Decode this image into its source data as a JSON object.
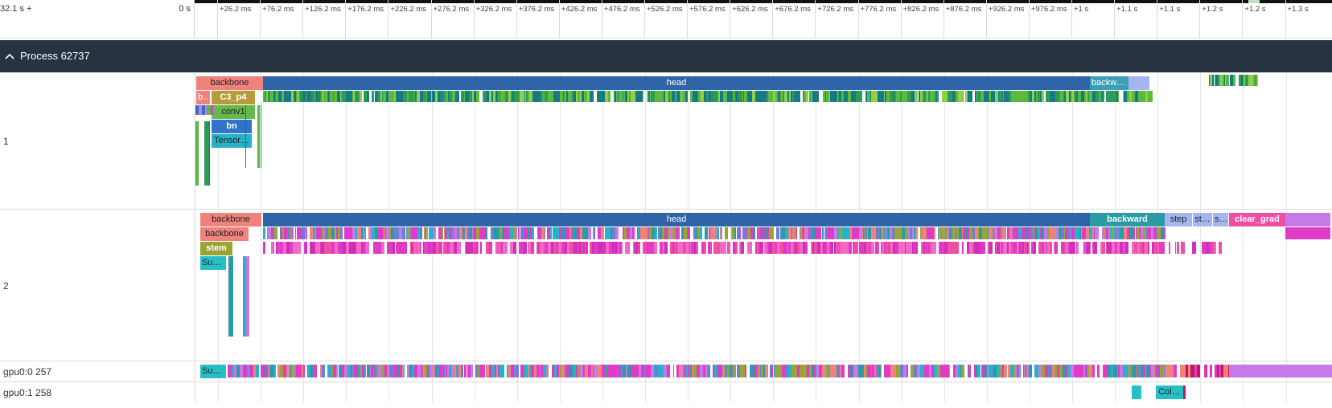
{
  "ruler": {
    "start_label": "32.1 s +",
    "zero_label": "0 s",
    "ticks": [
      "+26.2 ms",
      "+76.2 ms",
      "+126.2 ms",
      "+176.2 ms",
      "+226.2 ms",
      "+276.2 ms",
      "+326.2 ms",
      "+376.2 ms",
      "+426.2 ms",
      "+476.2 ms",
      "+526.2 ms",
      "+576.2 ms",
      "+626.2 ms",
      "+676.2 ms",
      "+726.2 ms",
      "+776.2 ms",
      "+826.2 ms",
      "+876.2 ms",
      "+926.2 ms",
      "+976.2 ms",
      "+1 s",
      "+1.1 s",
      "+1.1 s",
      "+1.2 s",
      "+1.2 s",
      "+1.3 s"
    ]
  },
  "process": {
    "title": "Process 62737",
    "chevron_icon": "chevron-up-icon"
  },
  "tracks": {
    "t1": {
      "label": "1",
      "slices": {
        "backbone": "backbone",
        "head": "head",
        "backward": "backwa…",
        "b": "b…",
        "c3p4": "C3_p4",
        "conv1": "conv1",
        "bn": "bn",
        "tensor": "Tensor…"
      }
    },
    "t2": {
      "label": "2",
      "slices": {
        "backbone": "backbone",
        "head": "head",
        "backward": "backward",
        "step": "step",
        "st": "st…",
        "s": "s…",
        "clear_grad": "clear_grad",
        "backbone2": "backbone",
        "stem": "stem",
        "sub": "Sub…"
      }
    },
    "gpu0": {
      "label": "gpu0:0 257",
      "slices": {
        "sub": "Sub…"
      }
    },
    "gpu1": {
      "label": "gpu0:1 258",
      "slices": {
        "col": "Col…"
      }
    }
  },
  "colors": {
    "backbone": "#f0827c",
    "head": "#2f64a8",
    "backward_t1": "#3a9fb6",
    "backward_t2": "#2a9aa3",
    "clear_grad": "#ef4fa3",
    "step": "#a4b6f0",
    "c3p4": "#b89a3a",
    "conv1": "#67b84c",
    "bn": "#2f74c9",
    "tensor": "#29b1c7",
    "stem": "#9aa434",
    "sub": "#27bfc7",
    "green_stripe": "#5cb83e",
    "teal_stripe": "#157a84",
    "magenta_stripe": "#e13ac6",
    "purple_stripe": "#c57ae8",
    "proc_header_bg": "#273341"
  }
}
